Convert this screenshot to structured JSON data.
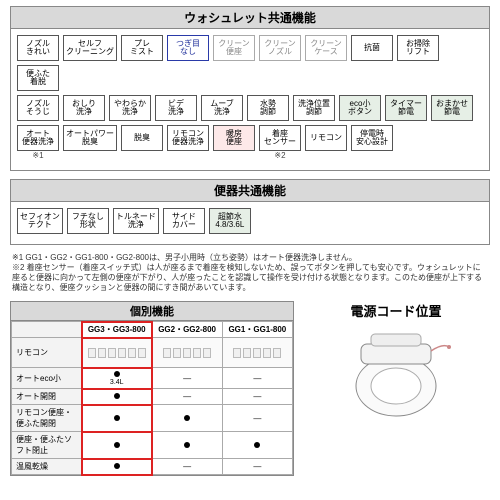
{
  "panel1": {
    "title": "ウォシュレット共通機能",
    "rows": [
      [
        {
          "t": "ノズル",
          "b": "きれい"
        },
        {
          "t": "セルフ",
          "b": "クリーニング"
        },
        {
          "t": "プレ",
          "b": "ミスト"
        },
        {
          "t": "つぎ目",
          "b": "なし",
          "sel": true
        },
        {
          "t": "クリーン",
          "b": "便座",
          "fade": true
        },
        {
          "t": "クリーン",
          "b": "ノズル",
          "fade": true
        },
        {
          "t": "クリーン",
          "b": "ケース",
          "fade": true
        },
        {
          "t": "抗菌",
          "b": ""
        },
        {
          "t": "お掃除",
          "b": "リフト"
        },
        {
          "t": "便ふた",
          "b": "着脱"
        }
      ],
      [
        {
          "t": "ノズル",
          "b": "そうじ"
        },
        {
          "t": "おしり",
          "b": "洗浄"
        },
        {
          "t": "やわらか",
          "b": "洗浄"
        },
        {
          "t": "ビデ",
          "b": "洗浄"
        },
        {
          "t": "ムーブ",
          "b": "洗浄"
        },
        {
          "t": "水勢",
          "b": "調節"
        },
        {
          "t": "洗浄位置",
          "b": "調節"
        },
        {
          "t": "eco小",
          "b": "ボタン",
          "cls": "green"
        },
        {
          "t": "タイマー",
          "b": "節電",
          "cls": "green"
        },
        {
          "t": "おまかせ",
          "b": "節電",
          "cls": "green"
        }
      ],
      [
        {
          "t": "オート",
          "b": "便器洗浄",
          "note": "※1"
        },
        {
          "t": "オートパワー",
          "b": "脱臭"
        },
        {
          "t": "脱臭",
          "b": ""
        },
        {
          "t": "リモコン",
          "b": "便器洗浄"
        },
        {
          "t": "暖房",
          "b": "便座",
          "cls": "red"
        },
        {
          "t": "着座",
          "b": "センサー",
          "note": "※2"
        },
        {
          "t": "リモコン",
          "b": ""
        },
        {
          "t": "停電時",
          "b": "安心設計"
        }
      ]
    ]
  },
  "panel2": {
    "title": "便器共通機能",
    "rows": [
      [
        {
          "t": "セフィオン",
          "b": "テクト"
        },
        {
          "t": "フチなし",
          "b": "形状"
        },
        {
          "t": "トルネード",
          "b": "洗浄"
        },
        {
          "t": "サイド",
          "b": "カバー"
        },
        {
          "t": "超節水",
          "b": "4.8/3.6L",
          "cls": "green"
        }
      ]
    ]
  },
  "footnotes": {
    "n1": "※1 GG1・GG2・GG1-800・GG2-800は、男子小用時（立ち姿勢）はオート便器洗浄しません。",
    "n2": "※2 着座センサー（着座スイッチ式）は人が座るまで着座を検知しないため、誤ってボタンを押しても安心です。ウォシュレットに座ると便器に向かって左側の便座が下がり、人が座ったことを認識して操作を受け付ける状態となります。このため便座が上下する構造となり、便座クッションと便器の間にすき間があいています。"
  },
  "table": {
    "title": "個別機能",
    "cols": [
      "GG3・GG3-800",
      "GG2・GG2-800",
      "GG1・GG1-800"
    ],
    "rows": [
      {
        "h": "リモコン",
        "type": "img"
      },
      {
        "h": "オートeco小",
        "c": [
          "●\n3.4L",
          "—",
          "—"
        ]
      },
      {
        "h": "オート開閉",
        "c": [
          "●",
          "—",
          "—"
        ]
      },
      {
        "h": "リモコン便座・便ふた開閉",
        "c": [
          "●",
          "●",
          "—"
        ]
      },
      {
        "h": "便座・便ふたソフト閉止",
        "c": [
          "●",
          "●",
          "●"
        ]
      },
      {
        "h": "温風乾燥",
        "c": [
          "●",
          "—",
          "—"
        ]
      }
    ]
  },
  "cord": {
    "title": "電源コード位置"
  }
}
